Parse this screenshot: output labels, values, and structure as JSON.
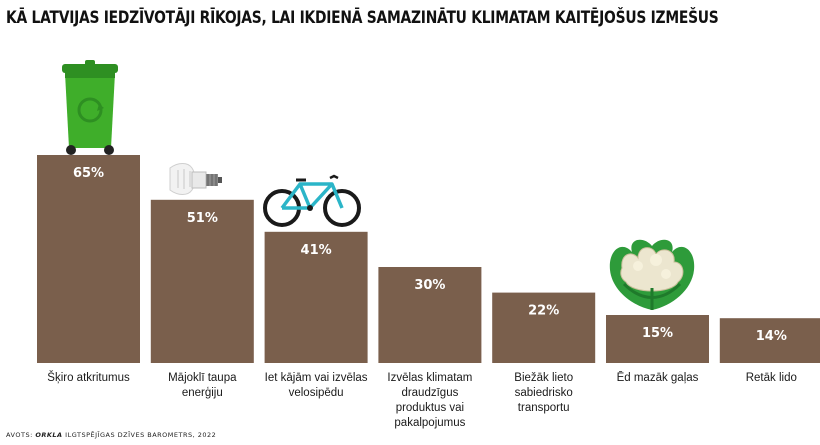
{
  "title": "KĀ LATVIJAS IEDZĪVOTĀJI RĪKOJAS, LAI IKDIENĀ SAMAZINĀTU KLIMATAM KAITĒJOŠUS IZMEŠUS",
  "source": {
    "prefix": "AVOTS: ",
    "brand": "ORKLA",
    "suffix": " ILGTSPĒJĪGAS DZĪVES BAROMETRS, 2022"
  },
  "colors": {
    "bar": "#7a5f4c",
    "bin": "#3fae2a",
    "bulb": "#e6e6e6",
    "bike": "#2bb5c8",
    "cauliflower": "#2e9b3a"
  },
  "icons": [
    "recycling-bin-icon",
    "light-bulb-icon",
    "bicycle-icon",
    "cauliflower-icon"
  ],
  "chart_data": {
    "type": "bar",
    "title": "KĀ LATVIJAS IEDZĪVOTĀJI RĪKOJAS, LAI IKDIENĀ SAMAZINĀTU KLIMATAM KAITĒJOŠUS IZMEŠUS",
    "categories": [
      "Šķiro atkritumus",
      "Mājoklī taupa enerģiju",
      "Iet kājām vai izvēlas velosipēdu",
      "Izvēlas klimatam draudzīgus produktus vai pakalpojumus",
      "Biežāk lieto sabiedrisko transportu",
      "Ēd mazāk gaļas",
      "Retāk lido"
    ],
    "values": [
      65,
      51,
      41,
      30,
      22,
      15,
      14
    ],
    "value_labels": [
      "65%",
      "51%",
      "41%",
      "30%",
      "22%",
      "15%",
      "14%"
    ],
    "unit": "%",
    "ylim": [
      0,
      100
    ],
    "grid": false,
    "legend": "none"
  }
}
